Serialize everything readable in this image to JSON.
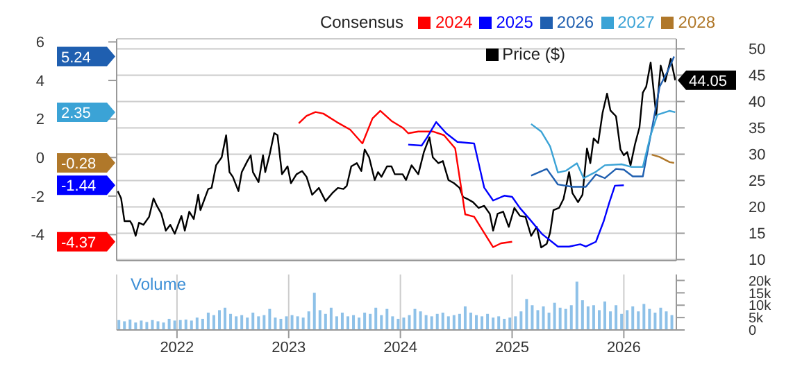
{
  "chart_data": [
    {
      "type": "line",
      "legend_title": "Consensus",
      "legend": "top right",
      "xlim": [
        2021.46,
        2026.47
      ],
      "xticks": [
        2022,
        2023,
        2024,
        2025,
        2026
      ],
      "ylim": [
        -5.35,
        6.16
      ],
      "yticks": [
        -4,
        -2,
        0,
        2,
        4,
        6
      ],
      "y2lim": [
        9.8,
        51.9
      ],
      "y2ticks": [
        10,
        15,
        20,
        25,
        30,
        35,
        40,
        45,
        50
      ],
      "grid": true,
      "tick_labels": "y",
      "series": [
        {
          "name": "Price ($)",
          "color": "#000000",
          "axis": "y2",
          "x": [
            2021.47,
            2021.5,
            2021.53,
            2021.58,
            2021.6,
            2021.63,
            2021.66,
            2021.7,
            2021.75,
            2021.79,
            2021.82,
            2021.86,
            2021.9,
            2021.94,
            2021.98,
            2022.04,
            2022.07,
            2022.11,
            2022.15,
            2022.19,
            2022.21,
            2022.28,
            2022.31,
            2022.35,
            2022.4,
            2022.44,
            2022.47,
            2022.5,
            2022.55,
            2022.58,
            2022.63,
            2022.66,
            2022.68,
            2022.73,
            2022.77,
            2022.79,
            2022.83,
            2022.87,
            2022.9,
            2022.94,
            2022.99,
            2023.02,
            2023.07,
            2023.12,
            2023.16,
            2023.21,
            2023.27,
            2023.33,
            2023.39,
            2023.44,
            2023.49,
            2023.52,
            2023.56,
            2023.61,
            2023.65,
            2023.68,
            2023.72,
            2023.77,
            2023.8,
            2023.83,
            2023.88,
            2023.92,
            2023.95,
            2024.02,
            2024.05,
            2024.1,
            2024.16,
            2024.21,
            2024.26,
            2024.29,
            2024.34,
            2024.38,
            2024.43,
            2024.48,
            2024.53,
            2024.56,
            2024.6,
            2024.65,
            2024.7,
            2024.75,
            2024.8,
            2024.83,
            2024.87,
            2024.92,
            2024.97,
            2025.02,
            2025.07,
            2025.12,
            2025.17,
            2025.22,
            2025.26,
            2025.31,
            2025.34,
            2025.37,
            2025.42,
            2025.46,
            2025.51,
            2025.54,
            2025.59,
            2025.63,
            2025.67,
            2025.7,
            2025.73,
            2025.77,
            2025.81,
            2025.85,
            2025.88,
            2025.93,
            2025.97,
            2026.0,
            2026.03,
            2026.06,
            2026.1,
            2026.14,
            2026.17,
            2026.2,
            2026.24,
            2026.29,
            2026.33,
            2026.37,
            2026.42,
            2026.46
          ],
          "values": [
            23.0,
            21.6,
            17.3,
            17.3,
            16.6,
            14.5,
            17.0,
            16.6,
            18.1,
            21.6,
            20.2,
            18.7,
            15.5,
            16.6,
            14.9,
            18.3,
            15.5,
            19.1,
            17.7,
            22.3,
            19.4,
            23.4,
            23.6,
            27.9,
            29.4,
            33.6,
            26.6,
            25.7,
            23.0,
            26.6,
            28.7,
            29.8,
            26.6,
            24.7,
            29.8,
            26.6,
            30.0,
            34.0,
            33.6,
            26.2,
            27.7,
            24.5,
            26.2,
            26.8,
            25.7,
            22.3,
            23.6,
            21.1,
            22.6,
            23.6,
            23.4,
            24.0,
            27.7,
            28.3,
            26.8,
            30.9,
            29.4,
            25.1,
            26.6,
            25.7,
            27.7,
            27.7,
            26.2,
            26.2,
            25.1,
            27.9,
            26.2,
            30.4,
            33.2,
            29.4,
            28.3,
            28.7,
            25.1,
            24.5,
            23.6,
            21.9,
            21.5,
            20.9,
            19.8,
            20.2,
            18.7,
            15.5,
            18.7,
            19.1,
            16.2,
            19.8,
            18.3,
            18.1,
            14.5,
            16.2,
            12.3,
            13.0,
            15.1,
            19.4,
            19.8,
            21.5,
            26.6,
            22.6,
            20.9,
            22.3,
            31.1,
            28.3,
            33.0,
            32.1,
            37.9,
            41.5,
            38.3,
            37.2,
            30.9,
            29.8,
            30.4,
            27.9,
            31.9,
            35.1,
            41.7,
            42.8,
            47.4,
            37.4,
            46.8,
            43.8,
            48.1,
            44.05
          ],
          "value_labels": [
            null,
            null,
            null,
            null,
            null,
            null,
            null,
            null,
            null,
            null,
            null,
            null,
            null,
            null,
            null,
            null,
            null,
            null,
            null,
            null,
            null,
            null,
            null,
            null,
            null,
            null,
            null,
            null,
            null,
            null,
            null,
            null,
            null,
            null,
            null,
            null,
            null,
            null,
            null,
            null,
            null,
            null,
            null,
            null,
            null,
            null,
            null,
            null,
            null,
            null,
            null,
            null,
            null,
            null,
            null,
            null,
            null,
            null,
            null,
            null,
            null,
            null,
            null,
            null,
            null,
            null,
            null,
            null,
            null,
            null,
            null,
            null,
            null,
            null,
            null,
            null,
            null,
            null,
            null,
            null,
            null,
            null,
            null,
            null,
            null,
            null,
            null,
            null,
            null,
            null,
            null,
            null,
            null,
            null,
            null,
            null,
            null,
            null,
            null,
            null,
            null,
            null,
            null,
            null,
            null,
            null,
            null,
            null,
            null,
            null,
            null,
            null,
            null,
            null,
            null,
            null,
            null,
            null,
            null,
            null,
            null,
            "44.05"
          ]
        },
        {
          "name": "2024",
          "color": "#ff0000",
          "x": [
            2023.09,
            2023.16,
            2023.24,
            2023.31,
            2023.43,
            2023.55,
            2023.66,
            2023.75,
            2023.82,
            2023.92,
            2024.02,
            2024.07,
            2024.16,
            2024.29,
            2024.39,
            2024.49,
            2024.58,
            2024.66,
            2024.83,
            2024.9,
            2025.0
          ],
          "values": [
            1.78,
            2.16,
            2.36,
            2.28,
            1.84,
            1.45,
            0.73,
            2.03,
            2.42,
            1.9,
            1.55,
            1.26,
            1.35,
            1.35,
            1.16,
            0.48,
            -2.95,
            -3.07,
            -4.65,
            -4.45,
            -4.37
          ]
        },
        {
          "name": "2025",
          "color": "#0000ff",
          "x": [
            2024.07,
            2024.19,
            2024.24,
            2024.32,
            2024.41,
            2024.51,
            2024.66,
            2024.75,
            2024.83,
            2024.93,
            2025.0,
            2025.07,
            2025.15,
            2025.27,
            2025.41,
            2025.51,
            2025.61,
            2025.66,
            2025.75,
            2025.82,
            2025.87,
            2025.92,
            2026.0
          ],
          "values": [
            0.67,
            0.62,
            1.06,
            1.84,
            1.26,
            0.81,
            0.73,
            -1.56,
            -2.23,
            -1.98,
            -2.04,
            -2.62,
            -3.15,
            -3.98,
            -4.62,
            -4.62,
            -4.5,
            -4.62,
            -4.37,
            -3.3,
            -2.33,
            -1.46,
            -1.44
          ]
        },
        {
          "name": "2026",
          "color": "#1f5fb0",
          "x": [
            2025.17,
            2025.31,
            2025.41,
            2025.54,
            2025.66,
            2025.75,
            2025.83,
            2025.93,
            2026.0,
            2026.08,
            2026.17,
            2026.25,
            2026.32,
            2026.39,
            2026.45
          ],
          "values": [
            -0.94,
            -0.59,
            -1.4,
            -1.52,
            -1.52,
            -0.88,
            -1.07,
            -0.59,
            -0.63,
            -0.98,
            -0.98,
            1.45,
            3.67,
            4.45,
            5.24
          ]
        },
        {
          "name": "2027",
          "color": "#3ba3d6",
          "x": [
            2025.17,
            2025.26,
            2025.34,
            2025.41,
            2025.48,
            2025.58,
            2025.64,
            2025.75,
            2025.83,
            2025.98,
            2026.07,
            2026.17,
            2026.24,
            2026.3,
            2026.41,
            2026.46
          ],
          "values": [
            1.74,
            1.35,
            0.58,
            -0.78,
            -0.69,
            -0.3,
            -1.07,
            -0.74,
            -0.4,
            -0.35,
            -0.49,
            -0.49,
            1.16,
            2.22,
            2.42,
            2.35
          ]
        },
        {
          "name": "2028",
          "color": "#b0782a",
          "x": [
            2026.25,
            2026.32,
            2026.41,
            2026.45
          ],
          "values": [
            0.15,
            0.03,
            -0.24,
            -0.28
          ]
        }
      ],
      "annotations": [
        "5.24",
        "2.35",
        "-0.28",
        "-1.44",
        "-4.37"
      ]
    },
    {
      "type": "bar",
      "title": "Volume",
      "xlim": [
        2021.46,
        2026.47
      ],
      "xticks": [
        2022,
        2023,
        2024,
        2025,
        2026
      ],
      "ylim": [
        0,
        22400
      ],
      "yticks": [
        0,
        {
          "value": 5000,
          "label": "5k"
        },
        {
          "value": 10000,
          "label": "10k"
        },
        {
          "value": 15000,
          "label": "15k"
        },
        {
          "value": 20000,
          "label": "20k"
        }
      ],
      "grid": "x",
      "color": "#8ec1e8",
      "x": [
        2021.48,
        2021.53,
        2021.58,
        2021.63,
        2021.68,
        2021.73,
        2021.78,
        2021.83,
        2021.88,
        2021.93,
        2021.98,
        2022.03,
        2022.08,
        2022.13,
        2022.18,
        2022.23,
        2022.28,
        2022.33,
        2022.38,
        2022.43,
        2022.48,
        2022.53,
        2022.58,
        2022.63,
        2022.68,
        2022.73,
        2022.78,
        2022.83,
        2022.88,
        2022.93,
        2022.98,
        2023.03,
        2023.08,
        2023.13,
        2023.18,
        2023.23,
        2023.28,
        2023.33,
        2023.38,
        2023.43,
        2023.48,
        2023.53,
        2023.58,
        2023.63,
        2023.68,
        2023.73,
        2023.78,
        2023.83,
        2023.88,
        2023.93,
        2023.98,
        2024.03,
        2024.08,
        2024.13,
        2024.18,
        2024.23,
        2024.28,
        2024.33,
        2024.38,
        2024.43,
        2024.48,
        2024.53,
        2024.58,
        2024.63,
        2024.68,
        2024.73,
        2024.78,
        2024.83,
        2024.88,
        2024.93,
        2024.98,
        2025.03,
        2025.08,
        2025.13,
        2025.18,
        2025.23,
        2025.28,
        2025.33,
        2025.38,
        2025.43,
        2025.48,
        2025.53,
        2025.58,
        2025.63,
        2025.68,
        2025.73,
        2025.78,
        2025.83,
        2025.88,
        2025.93,
        2025.98,
        2026.03,
        2026.08,
        2026.13,
        2026.18,
        2026.23,
        2026.28,
        2026.33,
        2026.38,
        2026.43
      ],
      "values": [
        4000,
        3500,
        4200,
        3000,
        3800,
        3200,
        4000,
        3500,
        3000,
        4500,
        3800,
        4000,
        4200,
        3800,
        5000,
        4500,
        7000,
        6000,
        8000,
        9000,
        6500,
        5500,
        6000,
        5000,
        7000,
        5500,
        6000,
        8500,
        5000,
        4500,
        5500,
        6000,
        5500,
        5000,
        7500,
        15000,
        8000,
        6500,
        9000,
        5500,
        7000,
        5500,
        6000,
        5000,
        7000,
        6500,
        9000,
        6000,
        8500,
        5500,
        4500,
        5000,
        6000,
        8500,
        7500,
        6000,
        5500,
        6500,
        7000,
        5500,
        6000,
        6500,
        9500,
        7000,
        6000,
        5500,
        6500,
        5000,
        5500,
        4500,
        5000,
        5500,
        7500,
        12500,
        10000,
        8000,
        9500,
        7000,
        11000,
        9000,
        8500,
        10000,
        19500,
        12000,
        9500,
        10000,
        8000,
        11500,
        7500,
        10000,
        6500,
        8000,
        9500,
        7500,
        10500,
        8500,
        7000,
        9000,
        7500,
        6000
      ]
    }
  ]
}
